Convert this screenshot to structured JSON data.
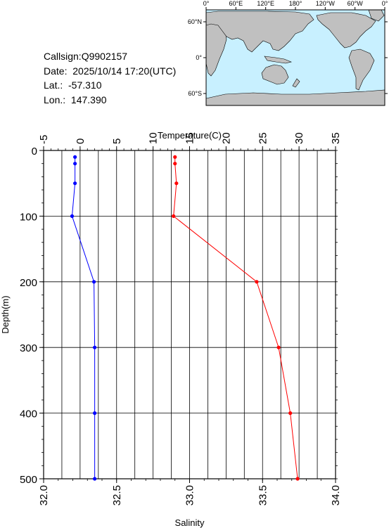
{
  "info": {
    "callsign": "Callsign:Q9902157",
    "date": "Date:  2025/10/14 17:20(UTC)",
    "lat": "Lat.:  -57.310",
    "lon": "Lon.:  147.390"
  },
  "map": {
    "lon_labels": [
      "0°",
      "60°E",
      "120°E",
      "180°",
      "120°W",
      "60°W",
      "0°"
    ],
    "lat_labels": [
      "60°N",
      "0°",
      "60°S"
    ],
    "ocean_color": "#c8f0ff",
    "land_color": "#c0c0c0",
    "marker_color": "#ff0000",
    "marker_icon": "star-icon"
  },
  "chart_data": {
    "type": "line",
    "title": "",
    "ylabel": "Depth(m)",
    "ylim": [
      0,
      500
    ],
    "y_inverted": true,
    "y_ticks": [
      "0",
      "100",
      "200",
      "300",
      "400",
      "500"
    ],
    "top_axis": {
      "label": "Temperature(C)",
      "xlim": [
        -5,
        35
      ],
      "ticks": [
        "-5",
        "0",
        "5",
        "10",
        "15",
        "20",
        "25",
        "30",
        "35"
      ]
    },
    "bottom_axis": {
      "label": "Salinity",
      "xlim": [
        32.0,
        34.0
      ],
      "ticks": [
        "32.0",
        "32.5",
        "33.0",
        "33.5",
        "34.0"
      ]
    },
    "grid": true,
    "series": [
      {
        "axis": "temperature",
        "color": "#0000ff",
        "points": [
          {
            "x": -0.7,
            "depth": 10
          },
          {
            "x": -0.7,
            "depth": 20
          },
          {
            "x": -0.7,
            "depth": 50
          },
          {
            "x": -1.1,
            "depth": 100
          },
          {
            "x": 1.9,
            "depth": 200
          },
          {
            "x": 2.0,
            "depth": 300
          },
          {
            "x": 2.0,
            "depth": 400
          },
          {
            "x": 2.0,
            "depth": 500
          }
        ]
      },
      {
        "axis": "salinity",
        "color": "#ff0000",
        "points": [
          {
            "x": 32.9,
            "depth": 10
          },
          {
            "x": 32.9,
            "depth": 20
          },
          {
            "x": 32.91,
            "depth": 50
          },
          {
            "x": 32.89,
            "depth": 100
          },
          {
            "x": 33.46,
            "depth": 200
          },
          {
            "x": 33.61,
            "depth": 300
          },
          {
            "x": 33.69,
            "depth": 400
          },
          {
            "x": 33.74,
            "depth": 500
          }
        ]
      }
    ]
  }
}
